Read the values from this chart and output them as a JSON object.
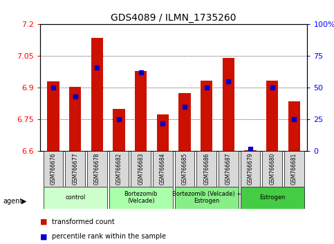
{
  "title": "GDS4089 / ILMN_1735260",
  "samples": [
    "GSM766676",
    "GSM766677",
    "GSM766678",
    "GSM766682",
    "GSM766683",
    "GSM766684",
    "GSM766685",
    "GSM766686",
    "GSM766687",
    "GSM766679",
    "GSM766680",
    "GSM766681"
  ],
  "transformed_count": [
    6.93,
    6.905,
    7.135,
    6.8,
    6.98,
    6.775,
    6.875,
    6.935,
    7.04,
    6.605,
    6.935,
    6.835
  ],
  "percentile_rank": [
    50,
    43,
    66,
    25,
    62,
    22,
    35,
    50,
    55,
    2,
    50,
    25
  ],
  "groups": [
    {
      "label": "control",
      "start": 0,
      "end": 3,
      "color": "#ccffcc"
    },
    {
      "label": "Bortezomib\n(Velcade)",
      "start": 3,
      "end": 6,
      "color": "#aaffaa"
    },
    {
      "label": "Bortezomib (Velcade) +\nEstrogen",
      "start": 6,
      "end": 9,
      "color": "#88ee88"
    },
    {
      "label": "Estrogen",
      "start": 9,
      "end": 12,
      "color": "#44cc44"
    }
  ],
  "ylim_left": [
    6.6,
    7.2
  ],
  "ylim_right": [
    0,
    100
  ],
  "yticks_left": [
    6.6,
    6.75,
    6.9,
    7.05,
    7.2
  ],
  "ytick_labels_left": [
    "6.6",
    "6.75",
    "6.9",
    "7.05",
    "7.2"
  ],
  "yticks_right": [
    0,
    25,
    50,
    75,
    100
  ],
  "ytick_labels_right": [
    "0",
    "25",
    "50",
    "75",
    "100%"
  ],
  "bar_color": "#cc1100",
  "dot_color": "#0000cc",
  "bar_width": 0.55,
  "legend_items": [
    {
      "label": "transformed count",
      "color": "#cc1100"
    },
    {
      "label": "percentile rank within the sample",
      "color": "#0000cc"
    }
  ],
  "agent_label": "agent"
}
